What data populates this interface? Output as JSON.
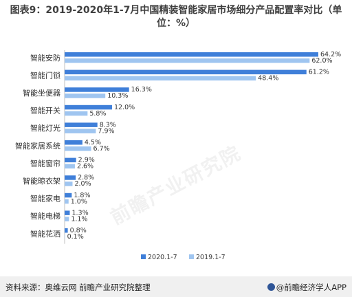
{
  "title": "图表9：2019-2020年1-7月中国精装智能家居市场细分产品配置率对比（单位：%）",
  "chart_data": {
    "type": "bar",
    "orientation": "horizontal",
    "categories": [
      "智能安防",
      "智能门锁",
      "智能坐便器",
      "智能开关",
      "智能灯光",
      "智能家居系统",
      "智能窗帘",
      "智能晾衣架",
      "智能家电",
      "智能电梯",
      "智能花洒"
    ],
    "series": [
      {
        "name": "2020.1-7",
        "color": "#3f7fd9",
        "values": [
          64.2,
          61.2,
          16.3,
          12.0,
          8.3,
          4.5,
          2.9,
          2.8,
          1.8,
          1.3,
          0.8
        ],
        "labels": [
          "64.2%",
          "61.2%",
          "16.3%",
          "12.0%",
          "8.3%",
          "4.5%",
          "2.9%",
          "2.8%",
          "1.8%",
          "1.3%",
          "0.8%"
        ]
      },
      {
        "name": "2019.1-7",
        "color": "#9fc5f0",
        "values": [
          62.0,
          48.4,
          10.3,
          5.8,
          7.9,
          6.7,
          2.6,
          2.0,
          1.0,
          1.1,
          0.1
        ],
        "labels": [
          "62.0%",
          "48.4%",
          "10.3%",
          "5.8%",
          "7.9%",
          "6.7%",
          "2.6%",
          "2.0%",
          "1.0%",
          "1.1%",
          "0.1%"
        ]
      }
    ],
    "xlim": [
      0,
      64.2
    ],
    "legend_position": "bottom",
    "grid": false
  },
  "watermark": "前瞻产业研究院",
  "footer": {
    "source": "资料来源：奥维云网  前瞻产业研究院整理",
    "brand": "@前瞻经济学人APP"
  }
}
